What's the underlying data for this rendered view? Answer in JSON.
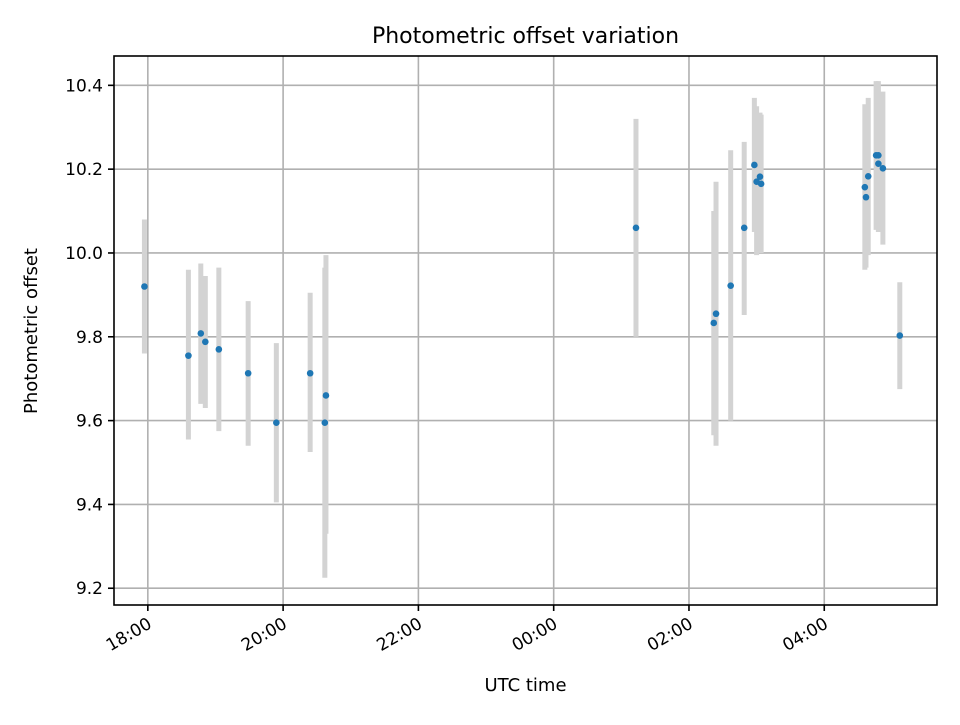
{
  "chart_data": {
    "type": "scatter",
    "title": "Photometric offset variation",
    "xlabel": "UTC time",
    "ylabel": "Photometric offset",
    "x_start": "2023-01-01 17:30",
    "x_end": "2023-01-02 05:40",
    "ylim": [
      9.16,
      10.47
    ],
    "yticks": [
      9.2,
      9.4,
      9.6,
      9.8,
      10.0,
      10.2,
      10.4
    ],
    "ytick_labels": [
      "9.2",
      "9.4",
      "9.6",
      "9.8",
      "10.0",
      "10.2",
      "10.4"
    ],
    "xticks": [
      "2023-01-01 18:00",
      "2023-01-01 20:00",
      "2023-01-01 22:00",
      "2023-01-02 00:00",
      "2023-01-02 02:00",
      "2023-01-02 04:00"
    ],
    "xtick_labels": [
      "18:00",
      "20:00",
      "22:00",
      "00:00",
      "02:00",
      "04:00"
    ],
    "grid": true,
    "point_color": "#1f77b4",
    "errorbar_color": "#d3d3d3",
    "points": [
      {
        "x": "2023-01-01 17:57",
        "y": 9.92,
        "ylow": 9.76,
        "yhigh": 10.08
      },
      {
        "x": "2023-01-01 18:36",
        "y": 9.755,
        "ylow": 9.555,
        "yhigh": 9.96
      },
      {
        "x": "2023-01-01 18:47",
        "y": 9.808,
        "ylow": 9.64,
        "yhigh": 9.975
      },
      {
        "x": "2023-01-01 18:51",
        "y": 9.788,
        "ylow": 9.63,
        "yhigh": 9.945
      },
      {
        "x": "2023-01-01 19:03",
        "y": 9.77,
        "ylow": 9.575,
        "yhigh": 9.965
      },
      {
        "x": "2023-01-01 19:29",
        "y": 9.713,
        "ylow": 9.54,
        "yhigh": 9.885
      },
      {
        "x": "2023-01-01 19:54",
        "y": 9.595,
        "ylow": 9.405,
        "yhigh": 9.785
      },
      {
        "x": "2023-01-01 20:24",
        "y": 9.713,
        "ylow": 9.525,
        "yhigh": 9.905
      },
      {
        "x": "2023-01-01 20:37",
        "y": 9.595,
        "ylow": 9.225,
        "yhigh": 9.965
      },
      {
        "x": "2023-01-01 20:38",
        "y": 9.66,
        "ylow": 9.33,
        "yhigh": 9.995
      },
      {
        "x": "2023-01-02 01:13",
        "y": 10.06,
        "ylow": 9.8,
        "yhigh": 10.32
      },
      {
        "x": "2023-01-02 02:22",
        "y": 9.833,
        "ylow": 9.565,
        "yhigh": 10.1
      },
      {
        "x": "2023-01-02 02:24",
        "y": 9.855,
        "ylow": 9.54,
        "yhigh": 10.17
      },
      {
        "x": "2023-01-02 02:37",
        "y": 9.922,
        "ylow": 9.6,
        "yhigh": 10.245
      },
      {
        "x": "2023-01-02 02:49",
        "y": 10.06,
        "ylow": 9.852,
        "yhigh": 10.265
      },
      {
        "x": "2023-01-02 02:58",
        "y": 10.21,
        "ylow": 10.05,
        "yhigh": 10.37
      },
      {
        "x": "2023-01-02 03:00",
        "y": 10.17,
        "ylow": 9.995,
        "yhigh": 10.35
      },
      {
        "x": "2023-01-02 03:03",
        "y": 10.182,
        "ylow": 10.03,
        "yhigh": 10.335
      },
      {
        "x": "2023-01-02 03:04",
        "y": 10.165,
        "ylow": 10.0,
        "yhigh": 10.33
      },
      {
        "x": "2023-01-02 04:36",
        "y": 10.157,
        "ylow": 9.96,
        "yhigh": 10.355
      },
      {
        "x": "2023-01-02 04:37",
        "y": 10.133,
        "ylow": 9.965,
        "yhigh": 10.3
      },
      {
        "x": "2023-01-02 04:39",
        "y": 10.183,
        "ylow": 9.995,
        "yhigh": 10.37
      },
      {
        "x": "2023-01-02 04:46",
        "y": 10.233,
        "ylow": 10.055,
        "yhigh": 10.41
      },
      {
        "x": "2023-01-02 04:48",
        "y": 10.233,
        "ylow": 10.06,
        "yhigh": 10.41
      },
      {
        "x": "2023-01-02 04:48",
        "y": 10.213,
        "ylow": 10.05,
        "yhigh": 10.375
      },
      {
        "x": "2023-01-02 04:52",
        "y": 10.202,
        "ylow": 10.02,
        "yhigh": 10.385
      },
      {
        "x": "2023-01-02 05:07",
        "y": 9.803,
        "ylow": 9.675,
        "yhigh": 9.93
      }
    ]
  }
}
